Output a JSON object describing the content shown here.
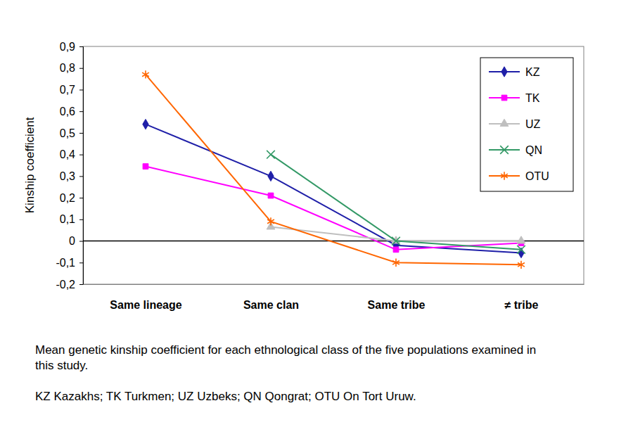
{
  "chart_data": {
    "type": "line",
    "y_label": "Kinship coefficient",
    "annotations": [
      "Mean genetic kinship coefficient for each ethnological class of the five populations examined in this study.",
      "KZ Kazakhs; TK Turkmen; UZ Uzbeks; QN Qongrat; OTU On Tort Uruw."
    ],
    "categories": [
      "Same lineage",
      "Same clan",
      "Same tribe",
      "≠ tribe"
    ],
    "series": [
      {
        "name": "KZ",
        "color": "#1f1fa8",
        "marker": "diamond",
        "values": [
          0.54,
          0.3,
          -0.02,
          -0.055
        ]
      },
      {
        "name": "TK",
        "color": "#ff00ff",
        "marker": "square",
        "values": [
          0.345,
          0.21,
          -0.04,
          -0.01
        ]
      },
      {
        "name": "UZ",
        "color": "#bfbfbf",
        "marker": "triangle",
        "values": [
          null,
          0.065,
          0.0,
          0.0
        ]
      },
      {
        "name": "QN",
        "color": "#339966",
        "marker": "x",
        "values": [
          null,
          0.4,
          0.0,
          -0.04
        ]
      },
      {
        "name": "OTU",
        "color": "#ff6600",
        "marker": "star",
        "values": [
          0.77,
          0.09,
          -0.1,
          -0.11
        ]
      }
    ],
    "ylim": [
      -0.2,
      0.9
    ],
    "yticks": [
      {
        "value": -0.2,
        "label": "-0,2"
      },
      {
        "value": -0.1,
        "label": "-0,1"
      },
      0,
      {
        "value": 0.1,
        "label": "0,1"
      },
      {
        "value": 0.2,
        "label": "0,2"
      },
      {
        "value": 0.3,
        "label": "0,3"
      },
      {
        "value": 0.4,
        "label": "0,4"
      },
      {
        "value": 0.5,
        "label": "0,5"
      },
      {
        "value": 0.6,
        "label": "0,6"
      },
      {
        "value": 0.7,
        "label": "0,7"
      },
      {
        "value": 0.8,
        "label": "0,8"
      },
      {
        "value": 0.9,
        "label": "0,9"
      }
    ],
    "grid": false,
    "legend": "top-right"
  }
}
